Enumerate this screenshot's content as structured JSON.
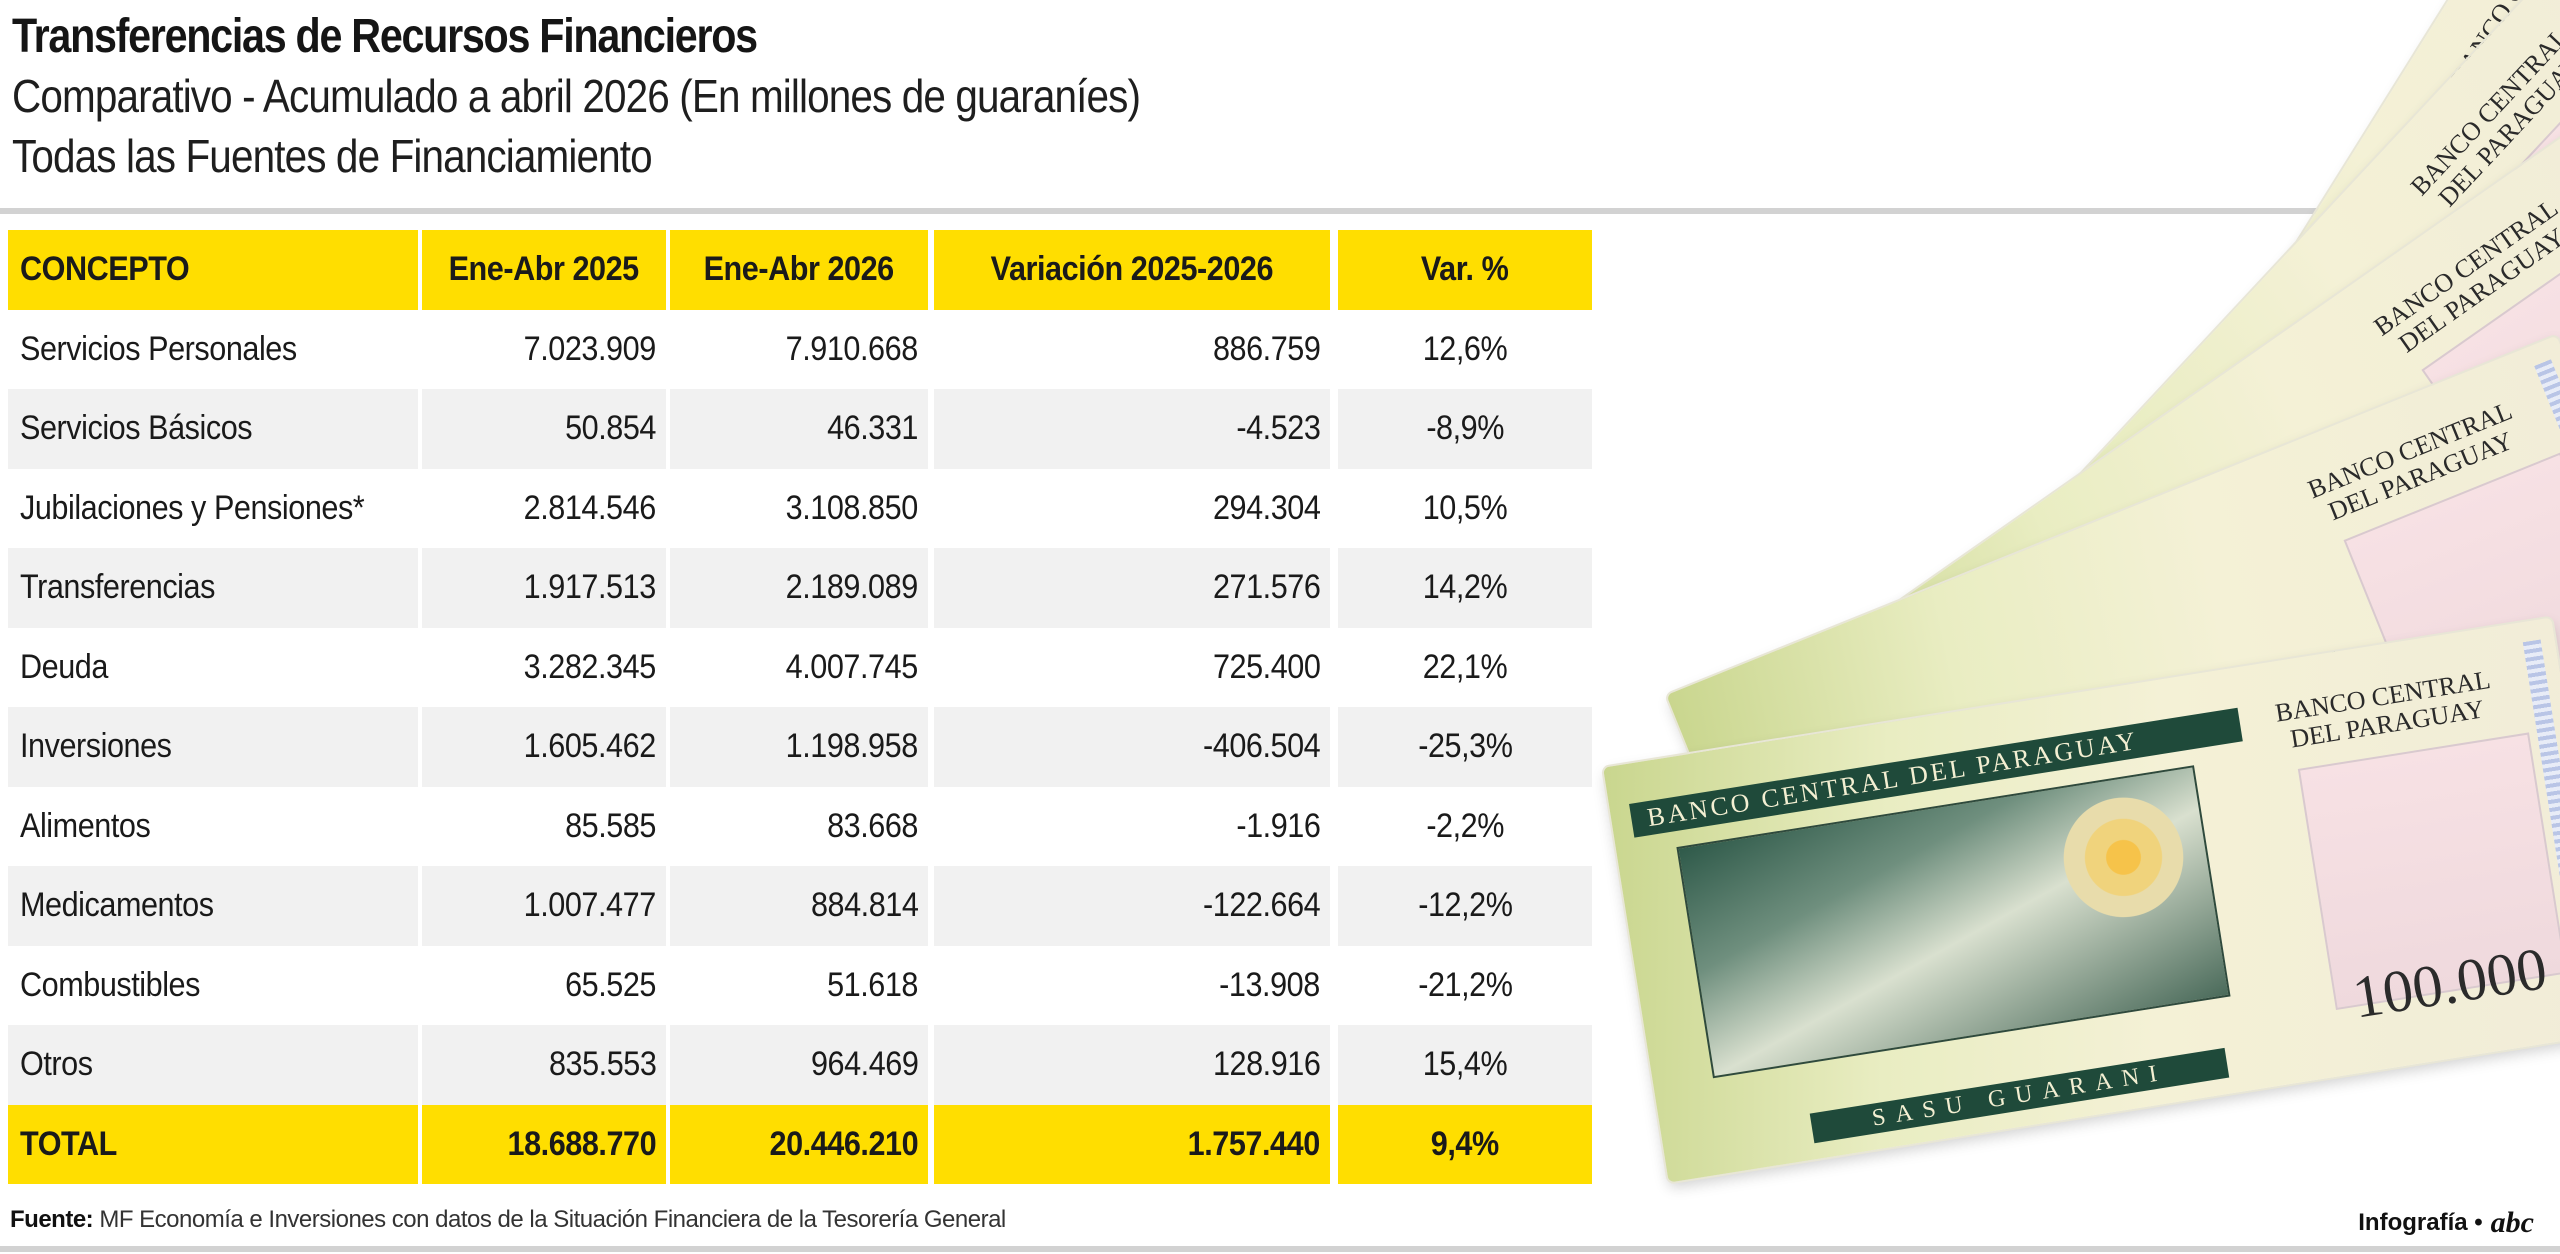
{
  "header": {
    "title": "Transferencias de Recursos Financieros",
    "subtitle_1": "Comparativo - Acumulado a abril 2026 (En millones de guaraníes)",
    "subtitle_2": "Todas las Fuentes de Financiamiento"
  },
  "colors": {
    "accent": "#ffde00",
    "row_alt": "#f1f1f1",
    "rule": "#d2d2d2"
  },
  "illustration": {
    "bank_line_1": "BANCO CENTRAL",
    "bank_line_2": "DEL PARAGUAY",
    "band_text": "BANCO CENTRAL DEL PARAGUAY",
    "denomination": "100.000",
    "currency_band": "SASU GUARANI"
  },
  "chart_data": {
    "type": "table",
    "columns": [
      "CONCEPTO",
      "Ene-Abr 2025",
      "Ene-Abr 2026",
      "Variación 2025-2026",
      "Var. %"
    ],
    "rows": [
      [
        "Servicios Personales",
        "7.023.909",
        "7.910.668",
        "886.759",
        "12,6%"
      ],
      [
        "Servicios Básicos",
        "50.854",
        "46.331",
        "-4.523",
        "-8,9%"
      ],
      [
        "Jubilaciones y Pensiones*",
        "2.814.546",
        "3.108.850",
        "294.304",
        "10,5%"
      ],
      [
        "Transferencias",
        "1.917.513",
        "2.189.089",
        "271.576",
        "14,2%"
      ],
      [
        "Deuda",
        "3.282.345",
        "4.007.745",
        "725.400",
        "22,1%"
      ],
      [
        "Inversiones",
        "1.605.462",
        "1.198.958",
        "-406.504",
        "-25,3%"
      ],
      [
        "Alimentos",
        "85.585",
        "83.668",
        "-1.916",
        "-2,2%"
      ],
      [
        "Medicamentos",
        "1.007.477",
        "884.814",
        "-122.664",
        "-12,2%"
      ],
      [
        "Combustibles",
        "65.525",
        "51.618",
        "-13.908",
        "-21,2%"
      ],
      [
        "Otros",
        "835.553",
        "964.469",
        "128.916",
        "15,4%"
      ]
    ],
    "total": [
      "TOTAL",
      "18.688.770",
      "20.446.210",
      "1.757.440",
      "9,4%"
    ]
  },
  "footer": {
    "source_label": "Fuente:",
    "source_text": "MF Economía e Inversiones con datos de la Situación Financiera de la Tesorería General",
    "credit": "Infografía •",
    "logo": "abc"
  }
}
